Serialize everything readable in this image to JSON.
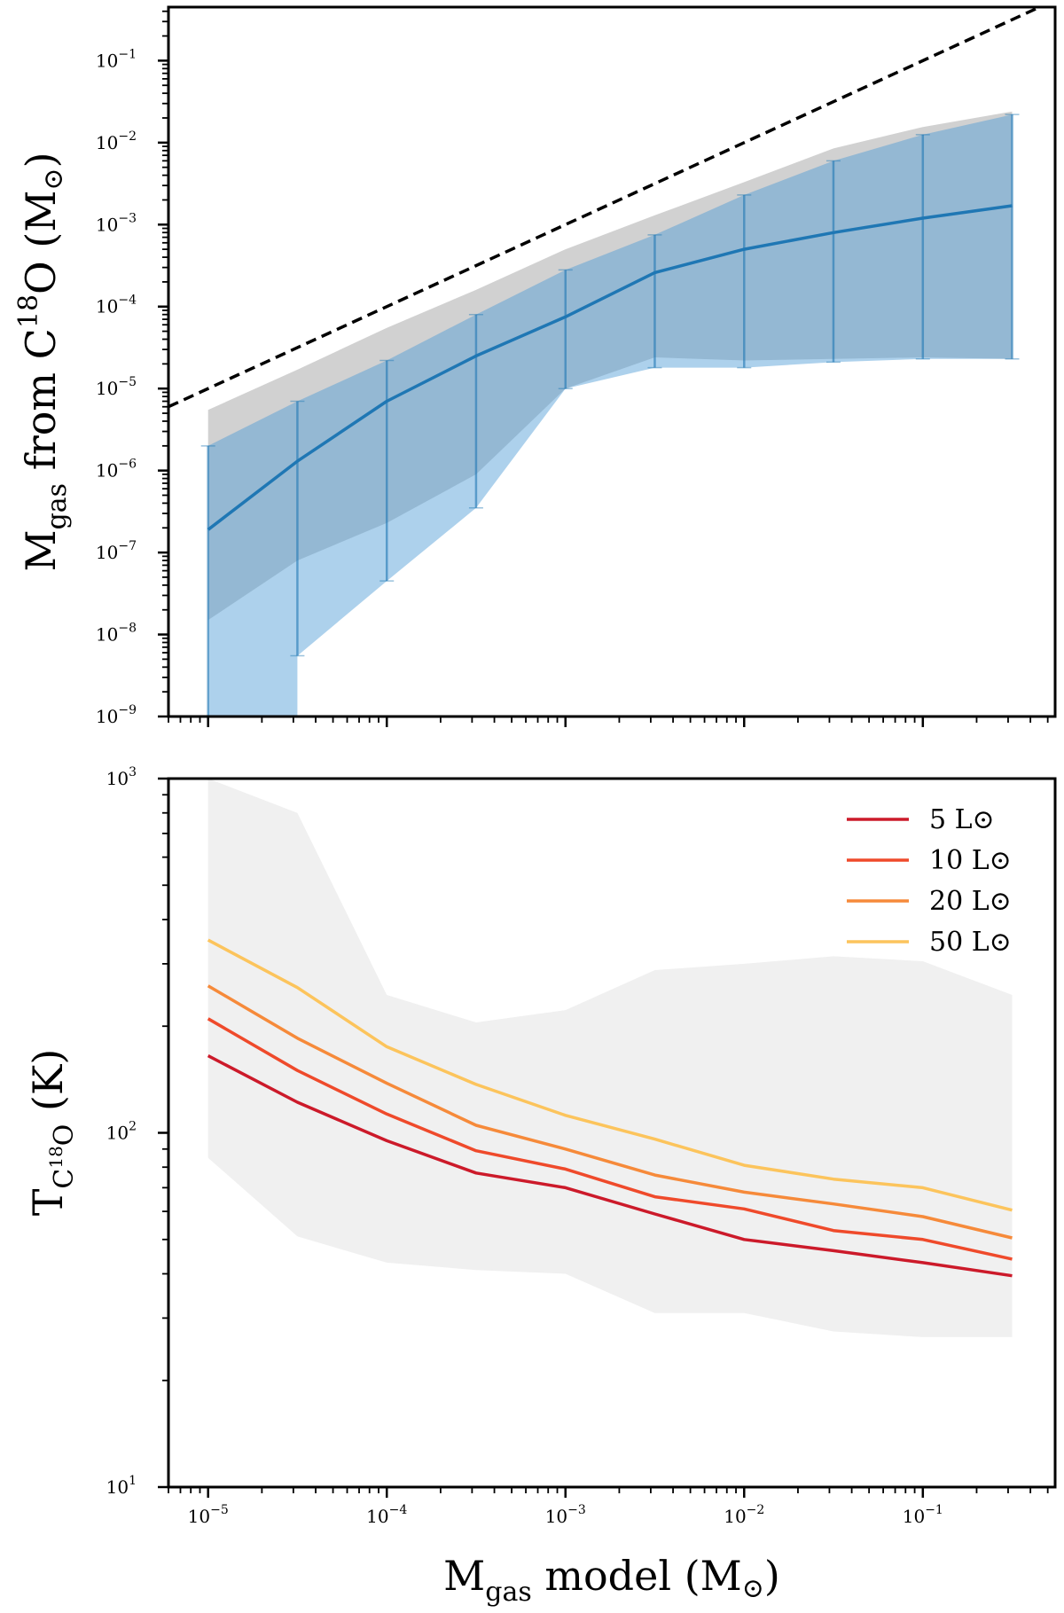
{
  "chart_data": [
    {
      "type": "line",
      "panel": "top",
      "ylabel": {
        "prefix": "M",
        "sub": "gas",
        "mid": " from C",
        "sup": "18",
        "suffix": "O (M",
        "sun": "⊙",
        "end": ")"
      },
      "xscale": "log",
      "yscale": "log",
      "xlim": [
        6e-06,
        0.55
      ],
      "ylim": [
        1e-09,
        0.45
      ],
      "y_ticks": [
        {
          "value": 1e-09,
          "base": "10",
          "exp": "−9"
        },
        {
          "value": 1e-08,
          "base": "10",
          "exp": "−8"
        },
        {
          "value": 1e-07,
          "base": "10",
          "exp": "−7"
        },
        {
          "value": 1e-06,
          "base": "10",
          "exp": "−6"
        },
        {
          "value": 1e-05,
          "base": "10",
          "exp": "−5"
        },
        {
          "value": 0.0001,
          "base": "10",
          "exp": "−4"
        },
        {
          "value": 0.001,
          "base": "10",
          "exp": "−3"
        },
        {
          "value": 0.01,
          "base": "10",
          "exp": "−2"
        },
        {
          "value": 0.1,
          "base": "10",
          "exp": "−1"
        }
      ],
      "one_to_one_line": {
        "style": "dashed",
        "color": "#000000",
        "x": [
          6e-06,
          0.55
        ],
        "y": [
          6e-06,
          0.55
        ]
      },
      "grey_band": {
        "color": "#bdbdbd",
        "x": [
          1e-05,
          3.16e-05,
          0.0001,
          0.000316,
          0.001,
          0.00316,
          0.01,
          0.0316,
          0.1,
          0.316
        ],
        "upper": [
          5.5e-06,
          1.7e-05,
          5.5e-05,
          0.00016,
          0.0005,
          0.0013,
          0.0033,
          0.0085,
          0.0155,
          0.024
        ],
        "lower": [
          1.5e-08,
          8e-08,
          2.3e-07,
          9e-07,
          1e-05,
          2.4e-05,
          2.2e-05,
          2.3e-05,
          2.4e-05,
          2.3e-05
        ]
      },
      "blue_band": {
        "color": "#4a9ad4",
        "x": [
          1e-05,
          3.16e-05,
          3.16e-05,
          0.0001,
          0.000316,
          0.001,
          0.00316,
          0.01,
          0.0316,
          0.1,
          0.316
        ],
        "upper": [
          2e-06,
          7e-06,
          7e-06,
          2.2e-05,
          8e-05,
          0.00028,
          0.00075,
          0.0023,
          0.006,
          0.0125,
          0.022
        ],
        "lower": [
          1e-09,
          1e-09,
          5.5e-09,
          4.5e-08,
          3.5e-07,
          1e-05,
          1.8e-05,
          1.8e-05,
          2.1e-05,
          2.3e-05,
          2.3e-05
        ]
      },
      "series": [
        {
          "color": "#1f77b4",
          "x": [
            1e-05,
            3.16e-05,
            0.0001,
            0.000316,
            0.001,
            0.00316,
            0.01,
            0.0316,
            0.1,
            0.316
          ],
          "y": [
            1.9e-07,
            1.3e-06,
            7e-06,
            2.5e-05,
            7.5e-05,
            0.00026,
            0.0005,
            0.0008,
            0.0012,
            0.0017
          ],
          "err_upper": [
            2e-06,
            7e-06,
            2.2e-05,
            8e-05,
            0.00028,
            0.00075,
            0.0023,
            0.006,
            0.0125,
            0.022
          ],
          "err_lower": [
            1e-09,
            5.5e-09,
            4.5e-08,
            3.5e-07,
            1e-05,
            1.8e-05,
            1.8e-05,
            2.1e-05,
            2.3e-05,
            2.3e-05
          ]
        }
      ]
    },
    {
      "type": "line",
      "panel": "bottom",
      "xlabel": {
        "prefix": "M",
        "sub": "gas",
        "mid": " model (M",
        "sun": "⊙",
        "end": ")"
      },
      "ylabel": {
        "prefix": "T",
        "sub_pre": "C",
        "sub_sup": "18",
        "sub_post": "O",
        "suffix": " (K)"
      },
      "xscale": "log",
      "yscale": "log",
      "xlim": [
        6e-06,
        0.55
      ],
      "ylim": [
        10,
        1000
      ],
      "x_ticks": [
        {
          "value": 1e-05,
          "base": "10",
          "exp": "−5"
        },
        {
          "value": 0.0001,
          "base": "10",
          "exp": "−4"
        },
        {
          "value": 0.001,
          "base": "10",
          "exp": "−3"
        },
        {
          "value": 0.01,
          "base": "10",
          "exp": "−2"
        },
        {
          "value": 0.1,
          "base": "10",
          "exp": "−1"
        }
      ],
      "y_ticks": [
        {
          "value": 10,
          "base": "10",
          "exp": "1"
        },
        {
          "value": 100,
          "base": "10",
          "exp": "2"
        },
        {
          "value": 1000,
          "base": "10",
          "exp": "3"
        }
      ],
      "grey_band": {
        "color": "#f0f0f0",
        "x": [
          1e-05,
          3.16e-05,
          0.0001,
          0.000316,
          0.001,
          0.00316,
          0.01,
          0.0316,
          0.1,
          0.316
        ],
        "upper": [
          1000,
          800,
          245,
          205,
          222,
          288,
          300,
          315,
          305,
          245
        ],
        "lower": [
          85,
          51,
          43,
          41,
          40,
          31,
          31,
          27.5,
          26.5,
          26.5
        ]
      },
      "legend_position": "top-right",
      "series": [
        {
          "name": "5 L⊙",
          "color": "#cc1a2a",
          "x": [
            1e-05,
            3.16e-05,
            0.0001,
            0.000316,
            0.001,
            0.00316,
            0.01,
            0.0316,
            0.1,
            0.316
          ],
          "y": [
            165,
            122,
            95,
            77,
            70,
            59,
            50,
            46.5,
            43,
            39.5
          ]
        },
        {
          "name": "10 L⊙",
          "color": "#ef4a2b",
          "x": [
            1e-05,
            3.16e-05,
            0.0001,
            0.000316,
            0.001,
            0.00316,
            0.01,
            0.0316,
            0.1,
            0.316
          ],
          "y": [
            210,
            150,
            113,
            89,
            79,
            66,
            61,
            53,
            50,
            44
          ]
        },
        {
          "name": "20 L⊙",
          "color": "#f68a3a",
          "x": [
            1e-05,
            3.16e-05,
            0.0001,
            0.000316,
            0.001,
            0.00316,
            0.01,
            0.0316,
            0.1,
            0.316
          ],
          "y": [
            260,
            185,
            138,
            105,
            90,
            76,
            68,
            63,
            58,
            50.5
          ]
        },
        {
          "name": "50 L⊙",
          "color": "#fcc45c",
          "x": [
            1e-05,
            3.16e-05,
            0.0001,
            0.000316,
            0.001,
            0.00316,
            0.01,
            0.0316,
            0.1,
            0.316
          ],
          "y": [
            350,
            257,
            175,
            137,
            112,
            96,
            81,
            74,
            70,
            60.5
          ]
        }
      ]
    }
  ]
}
